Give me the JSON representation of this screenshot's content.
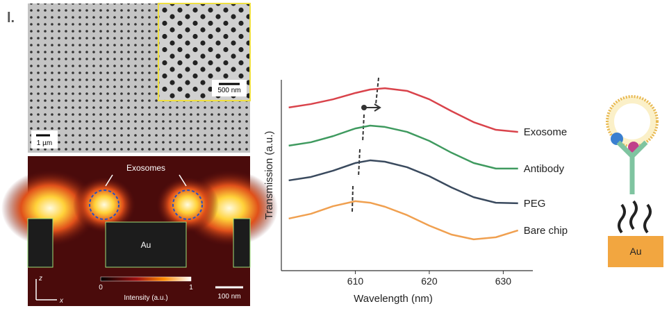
{
  "panel_label": "l.",
  "sem": {
    "inset_scale": "500 nm",
    "scale": "1 µm"
  },
  "field_map": {
    "annotation": "Exosomes",
    "block_label": "Au",
    "colorbar_min": 0,
    "colorbar_label": "Intensity (a.u.)",
    "colorbar_max": 1,
    "scale": "100 nm",
    "axis_z": "z",
    "axis_x": "x"
  },
  "schematic": {
    "substrate_label": "Au"
  },
  "chart_data": {
    "type": "line",
    "x_label": "Wavelength (nm)",
    "y_label": "Transmission (a.u.)",
    "x": [
      601,
      604,
      607,
      610,
      612,
      614,
      617,
      620,
      623,
      626,
      629,
      632
    ],
    "xlim": [
      600,
      634
    ],
    "xticks": [
      610,
      620,
      630
    ],
    "ylim": [
      0,
      100
    ],
    "series": [
      {
        "name": "Exosome",
        "color": "#d9434b",
        "values": [
          85.5,
          87.3,
          89.8,
          93.1,
          94.9,
          95.6,
          94.2,
          89.8,
          83.6,
          77.8,
          73.8,
          72.7
        ]
      },
      {
        "name": "Antibody",
        "color": "#3f9a5f",
        "values": [
          65.5,
          67.3,
          70.5,
          74.5,
          76.0,
          75.3,
          72.7,
          68.0,
          61.8,
          56.4,
          53.5,
          53.5
        ]
      },
      {
        "name": "PEG",
        "color": "#3a4a5e",
        "values": [
          47.3,
          49.1,
          52.4,
          56.4,
          57.8,
          57.1,
          54.2,
          49.5,
          43.6,
          38.5,
          35.6,
          35.3
        ]
      },
      {
        "name": "Bare chip",
        "color": "#f0a050",
        "values": [
          27.3,
          29.8,
          33.8,
          36.4,
          35.6,
          33.5,
          29.1,
          23.6,
          18.9,
          16.4,
          17.5,
          21.1
        ]
      }
    ]
  }
}
